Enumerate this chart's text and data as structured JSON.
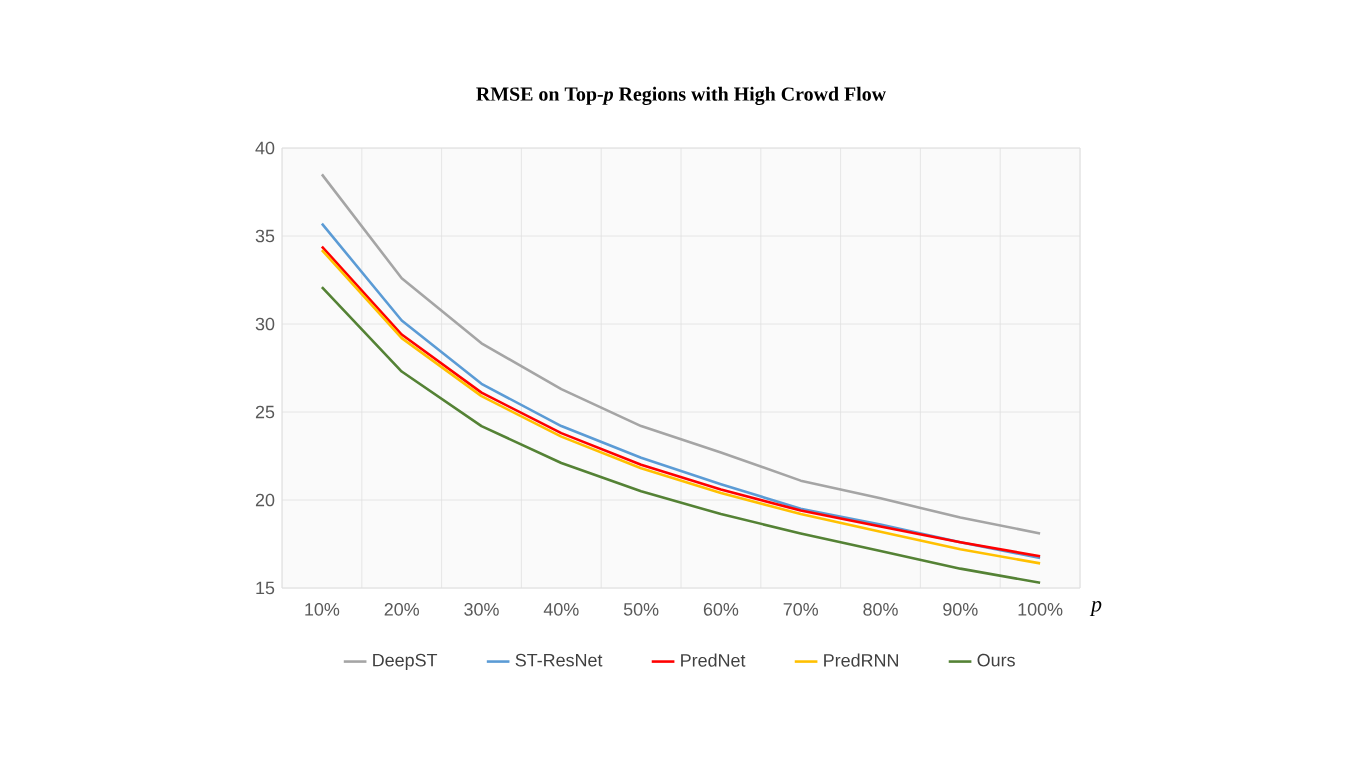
{
  "chart_data": {
    "type": "line",
    "title": "RMSE on Top-*p* Regions with High Crowd Flow",
    "xlabel": "p",
    "categories": [
      "10%",
      "20%",
      "30%",
      "40%",
      "50%",
      "60%",
      "70%",
      "80%",
      "90%",
      "100%"
    ],
    "series": [
      {
        "name": "DeepST",
        "color": "#a5a5a5",
        "values": [
          38.5,
          32.6,
          28.9,
          26.3,
          24.2,
          22.7,
          21.1,
          20.1,
          19.0,
          18.1
        ]
      },
      {
        "name": "ST-ResNet",
        "color": "#5b9bd5",
        "values": [
          35.7,
          30.2,
          26.6,
          24.2,
          22.4,
          20.9,
          19.5,
          18.6,
          17.6,
          16.7
        ]
      },
      {
        "name": "PredNet",
        "color": "#ff0000",
        "values": [
          34.4,
          29.4,
          26.1,
          23.8,
          22.0,
          20.6,
          19.4,
          18.5,
          17.6,
          16.8
        ]
      },
      {
        "name": "PredRNN",
        "color": "#ffc000",
        "values": [
          34.2,
          29.2,
          25.9,
          23.6,
          21.8,
          20.4,
          19.2,
          18.2,
          17.2,
          16.4
        ]
      },
      {
        "name": "Ours",
        "color": "#548235",
        "values": [
          32.1,
          27.3,
          24.2,
          22.1,
          20.5,
          19.2,
          18.1,
          17.1,
          16.1,
          15.3
        ]
      }
    ],
    "ylim": [
      15,
      40
    ],
    "yticks": [
      15,
      20,
      25,
      30,
      35,
      40
    ],
    "grid": true,
    "legend": "bottom"
  }
}
